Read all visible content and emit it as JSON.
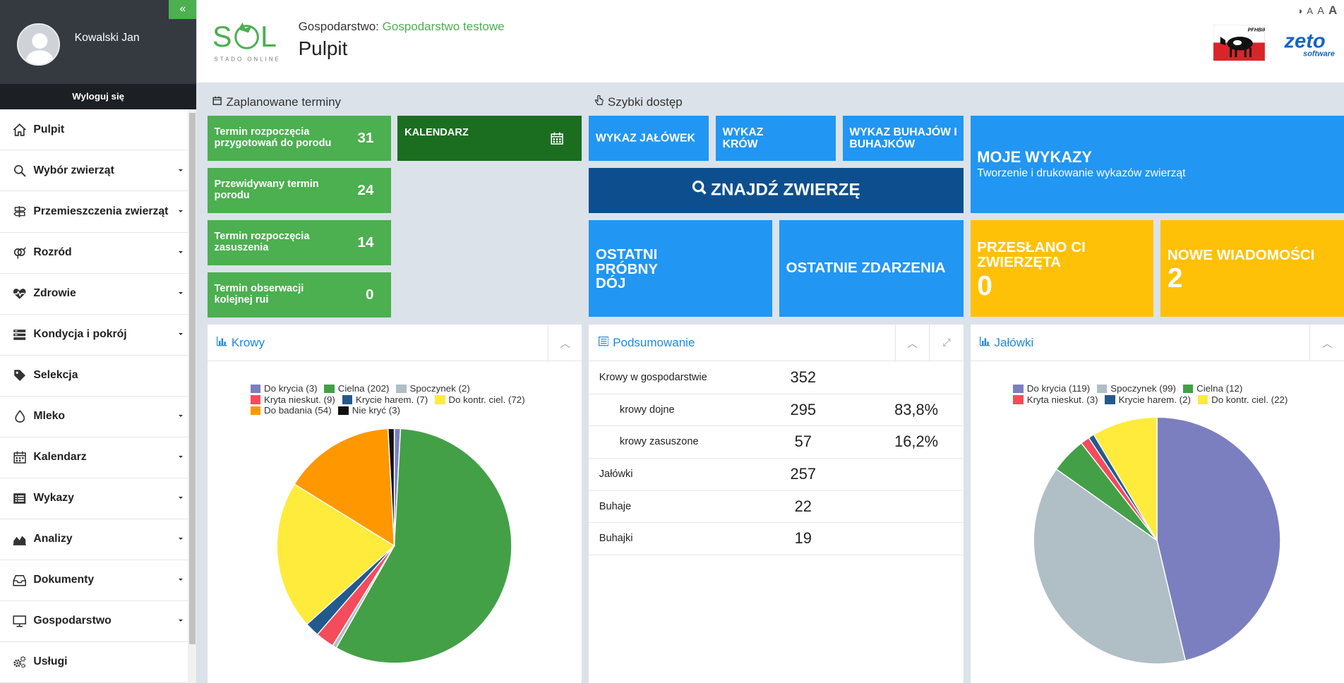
{
  "sidebar": {
    "user_name": "Kowalski Jan",
    "logout_label": "Wyloguj się",
    "items": [
      {
        "label": "Pulpit",
        "icon": "home-icon",
        "caret": false
      },
      {
        "label": "Wybór zwierząt",
        "icon": "search-icon",
        "caret": true
      },
      {
        "label": "Przemieszczenia zwierząt",
        "icon": "signpost-icon",
        "caret": true
      },
      {
        "label": "Rozród",
        "icon": "gender-icon",
        "caret": true
      },
      {
        "label": "Zdrowie",
        "icon": "heartbeat-icon",
        "caret": true
      },
      {
        "label": "Kondycja i pokrój",
        "icon": "cards-icon",
        "caret": true
      },
      {
        "label": "Selekcja",
        "icon": "tag-icon",
        "caret": false
      },
      {
        "label": "Mleko",
        "icon": "drop-icon",
        "caret": true
      },
      {
        "label": "Kalendarz",
        "icon": "calendar-icon",
        "caret": true
      },
      {
        "label": "Wykazy",
        "icon": "list-icon",
        "caret": true
      },
      {
        "label": "Analizy",
        "icon": "area-chart-icon",
        "caret": true
      },
      {
        "label": "Dokumenty",
        "icon": "inbox-icon",
        "caret": true
      },
      {
        "label": "Gospodarstwo",
        "icon": "monitor-icon",
        "caret": true
      },
      {
        "label": "Usługi",
        "icon": "gears-icon",
        "caret": false
      }
    ]
  },
  "header": {
    "farm_prefix": "Gospodarstwo:",
    "farm_name": "Gospodarstwo testowe",
    "page_title": "Pulpit",
    "logo_sub": "STADO ONLINE",
    "pfhb_text": "PFHBiPM",
    "zeto_text": "zeto",
    "zeto_sub": "software"
  },
  "scheduled": {
    "title": "Zaplanowane terminy",
    "items": [
      {
        "label": "Termin rozpoczęcia przygotowań do porodu",
        "count": "31"
      },
      {
        "label": "Przewidywany termin porodu",
        "count": "24"
      },
      {
        "label": "Termin rozpoczęcia zasuszenia",
        "count": "14"
      },
      {
        "label": "Termin obserwacji kolejnej rui",
        "count": "0"
      }
    ],
    "calendar_label": "KALENDARZ"
  },
  "quick": {
    "title": "Szybki dostęp",
    "heifers_list": "WYKAZ JAŁÓWEK",
    "cows_list": "WYKAZ KRÓW",
    "bulls_list": "WYKAZ BUHAJÓW I BUHAJKÓW",
    "find_animal": "ZNAJDŹ ZWIERZĘ",
    "last_milking": "OSTATNI PRÓBNY DÓJ",
    "last_events": "OSTATNIE ZDARZENIA",
    "my_lists_title": "MOJE WYKAZY",
    "my_lists_sub": "Tworzenie i drukowanie wykazów zwierząt",
    "sent_title": "PRZESŁANO CI ZWIERZĘTA",
    "sent_value": "0",
    "messages_title": "NOWE WIADOMOŚCI",
    "messages_value": "2"
  },
  "summary": {
    "title": "Podsumowanie",
    "rows": [
      {
        "label": "Krowy w gospodarstwie",
        "value": "352",
        "pct": "",
        "indent": false
      },
      {
        "label": "krowy dojne",
        "value": "295",
        "pct": "83,8%",
        "indent": true
      },
      {
        "label": "krowy zasuszone",
        "value": "57",
        "pct": "16,2%",
        "indent": true
      },
      {
        "label": "Jałówki",
        "value": "257",
        "pct": "",
        "indent": false
      },
      {
        "label": "Buhaje",
        "value": "22",
        "pct": "",
        "indent": false
      },
      {
        "label": "Buhajki",
        "value": "19",
        "pct": "",
        "indent": false
      }
    ]
  },
  "chart_data": [
    {
      "type": "pie",
      "title": "Krowy",
      "slices": [
        {
          "label": "Do krycia (3)",
          "value": 3,
          "color": "#7b7fbf"
        },
        {
          "label": "Cielna (202)",
          "value": 202,
          "color": "#43a047"
        },
        {
          "label": "Spoczynek (2)",
          "value": 2,
          "color": "#b0bec5"
        },
        {
          "label": "Kryta nieskut. (9)",
          "value": 9,
          "color": "#f44c5c"
        },
        {
          "label": "Krycie harem. (7)",
          "value": 7,
          "color": "#225a8e"
        },
        {
          "label": "Do kontr. ciel. (72)",
          "value": 72,
          "color": "#ffeb3b"
        },
        {
          "label": "Do badania (54)",
          "value": 54,
          "color": "#ff9800"
        },
        {
          "label": "Nie kryć (3)",
          "value": 3,
          "color": "#111111"
        }
      ],
      "legend_rows": [
        [
          0,
          1,
          2
        ],
        [
          3,
          4,
          5
        ],
        [
          6,
          7
        ]
      ],
      "legend_position": "top"
    },
    {
      "type": "pie",
      "title": "Jałówki",
      "slices": [
        {
          "label": "Do krycia (119)",
          "value": 119,
          "color": "#7b7fbf"
        },
        {
          "label": "Spoczynek (99)",
          "value": 99,
          "color": "#b0bec5"
        },
        {
          "label": "Cielna (12)",
          "value": 12,
          "color": "#43a047"
        },
        {
          "label": "Kryta nieskut. (3)",
          "value": 3,
          "color": "#f44c5c"
        },
        {
          "label": "Krycie harem. (2)",
          "value": 2,
          "color": "#225a8e"
        },
        {
          "label": "Do kontr. ciel. (22)",
          "value": 22,
          "color": "#ffeb3b"
        }
      ],
      "legend_rows": [
        [
          0,
          1,
          2
        ],
        [
          3,
          4,
          5
        ]
      ],
      "legend_position": "top"
    }
  ]
}
